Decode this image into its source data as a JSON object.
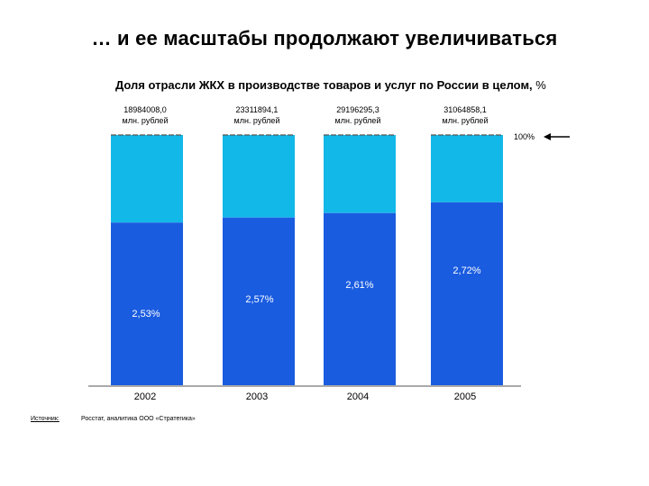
{
  "header": {
    "title": "… и ее масштабы продолжают увеличиваться",
    "subtitle": "Доля отрасли ЖКХ в производстве товаров и услуг по России в целом,",
    "subtitle_unit": "%"
  },
  "footer": {
    "source_label": "Источник:",
    "source_text": "Росстат, аналитика ООО «Стратегика»"
  },
  "chart_data": {
    "type": "bar",
    "stacked": true,
    "title": "Доля отрасли ЖКХ в производстве товаров и услуг по России в целом, %",
    "categories": [
      "2002",
      "2003",
      "2004",
      "2005"
    ],
    "totals_lines": [
      [
        "18984008,0",
        "млн. рублей"
      ],
      [
        "23311894,1",
        "млн. рублей"
      ],
      [
        "29196295,3",
        "млн. рублей"
      ],
      [
        "31064858,1",
        "млн. рублей"
      ]
    ],
    "value_labels": [
      "2,53%",
      "2,57%",
      "2,61%",
      "2,72%"
    ],
    "share_values": [
      2.53,
      2.57,
      2.61,
      2.72
    ],
    "lower_fraction": [
      0.65,
      0.67,
      0.688,
      0.731
    ],
    "reference_label": "100%",
    "colors": {
      "lower": "#1a5ce0",
      "upper": "#12b8e8"
    }
  }
}
